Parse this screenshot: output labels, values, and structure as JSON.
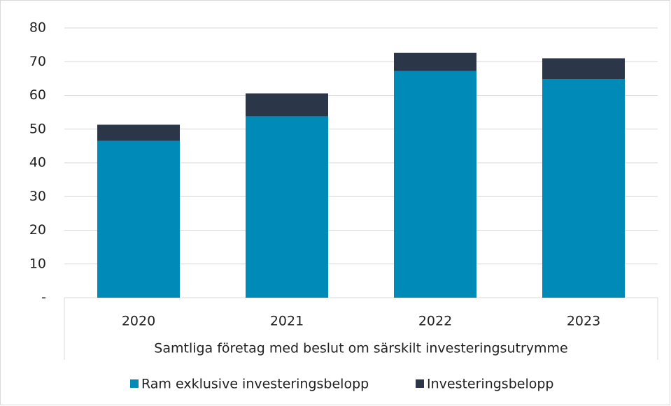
{
  "chart_data": {
    "type": "stacked_bar",
    "categories": [
      "2020",
      "2021",
      "2022",
      "2023"
    ],
    "xlabel": "Samtliga företag med beslut om särskilt investeringsutrymme",
    "series": [
      {
        "name": "Ram exklusive investeringsbelopp",
        "color": "#008ab8",
        "values": [
          46.5,
          53.8,
          67.2,
          64.8
        ]
      },
      {
        "name": "Investeringsbelopp",
        "color": "#2b3648",
        "values": [
          4.8,
          6.8,
          5.4,
          6.2
        ]
      }
    ],
    "ylim": [
      0,
      80
    ],
    "yticks": [
      {
        "value": 0,
        "label": "-"
      },
      10,
      20,
      30,
      40,
      50,
      60,
      70,
      80
    ],
    "grid": true,
    "legend": "bottom"
  }
}
